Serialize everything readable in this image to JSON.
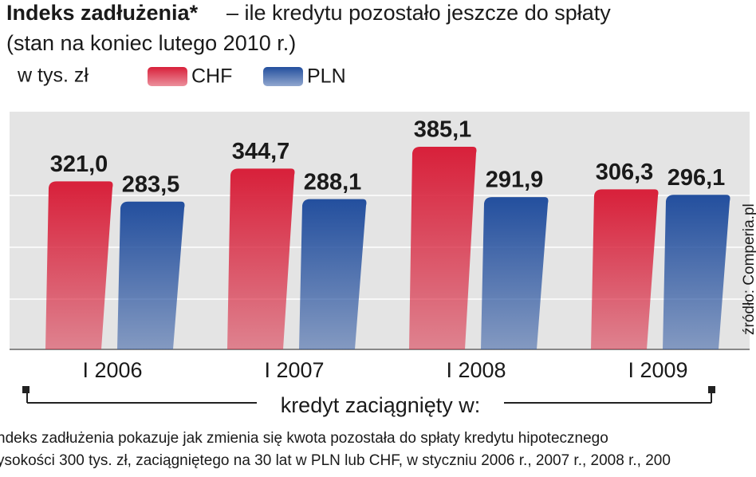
{
  "chart_data": {
    "type": "bar",
    "title": "Indeks zadłużenia*",
    "title_rest": "– ile kredytu pozostało jeszcze do spłaty",
    "subtitle": "(stan na koniec lutego 2010 r.)",
    "unit": "w tys. zł",
    "categories": [
      "I 2006",
      "I 2007",
      "I 2008",
      "I 2009"
    ],
    "series": [
      {
        "name": "CHF",
        "color": "#d8203a",
        "values": [
          321.0,
          344.7,
          385.1,
          306.3
        ],
        "value_labels": [
          "321,0",
          "344,7",
          "385,1",
          "306,3"
        ]
      },
      {
        "name": "PLN",
        "color": "#234f9e",
        "values": [
          283.5,
          288.1,
          291.9,
          296.1
        ],
        "value_labels": [
          "283,5",
          "288,1",
          "291,9",
          "296,1"
        ]
      }
    ],
    "ylim": [
      10,
      450
    ],
    "x_label": "kredyt zaciągnięty w:",
    "source": "źródło: Comperia.pl",
    "footnote": [
      "ndeks zadłużenia pokazuje jak zmienia się kwota pozostała do spłaty  kredytu hipotecznego",
      "ysokości 300 tys. zł, zaciągniętego na 30 lat w PLN lub CHF, w styczniu 2006 r., 2007 r., 2008 r., 200"
    ]
  }
}
